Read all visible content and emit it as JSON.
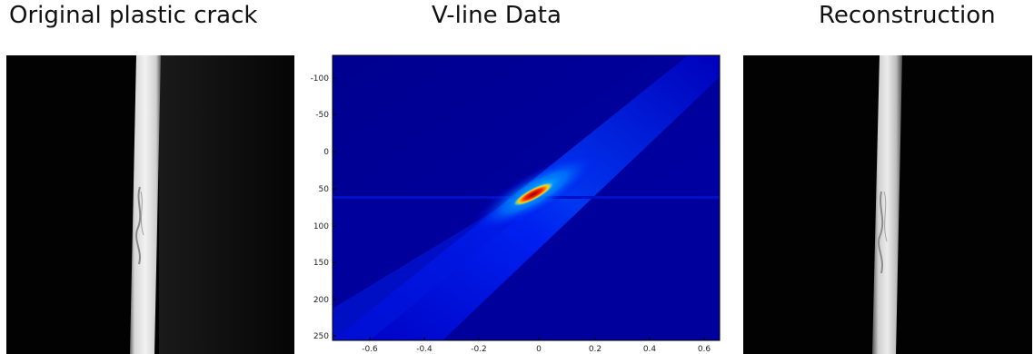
{
  "panels": [
    {
      "title": "Original plastic crack"
    },
    {
      "title": "V-line Data"
    },
    {
      "title": "Reconstruction"
    }
  ],
  "heatmap": {
    "colormap": "jet",
    "x_ticks": [
      "-0.6",
      "-0.4",
      "-0.2",
      "0",
      "0.2",
      "0.4",
      "0.6"
    ],
    "y_ticks": [
      "-100",
      "-50",
      "0",
      "50",
      "100",
      "150",
      "200",
      "250"
    ]
  }
}
